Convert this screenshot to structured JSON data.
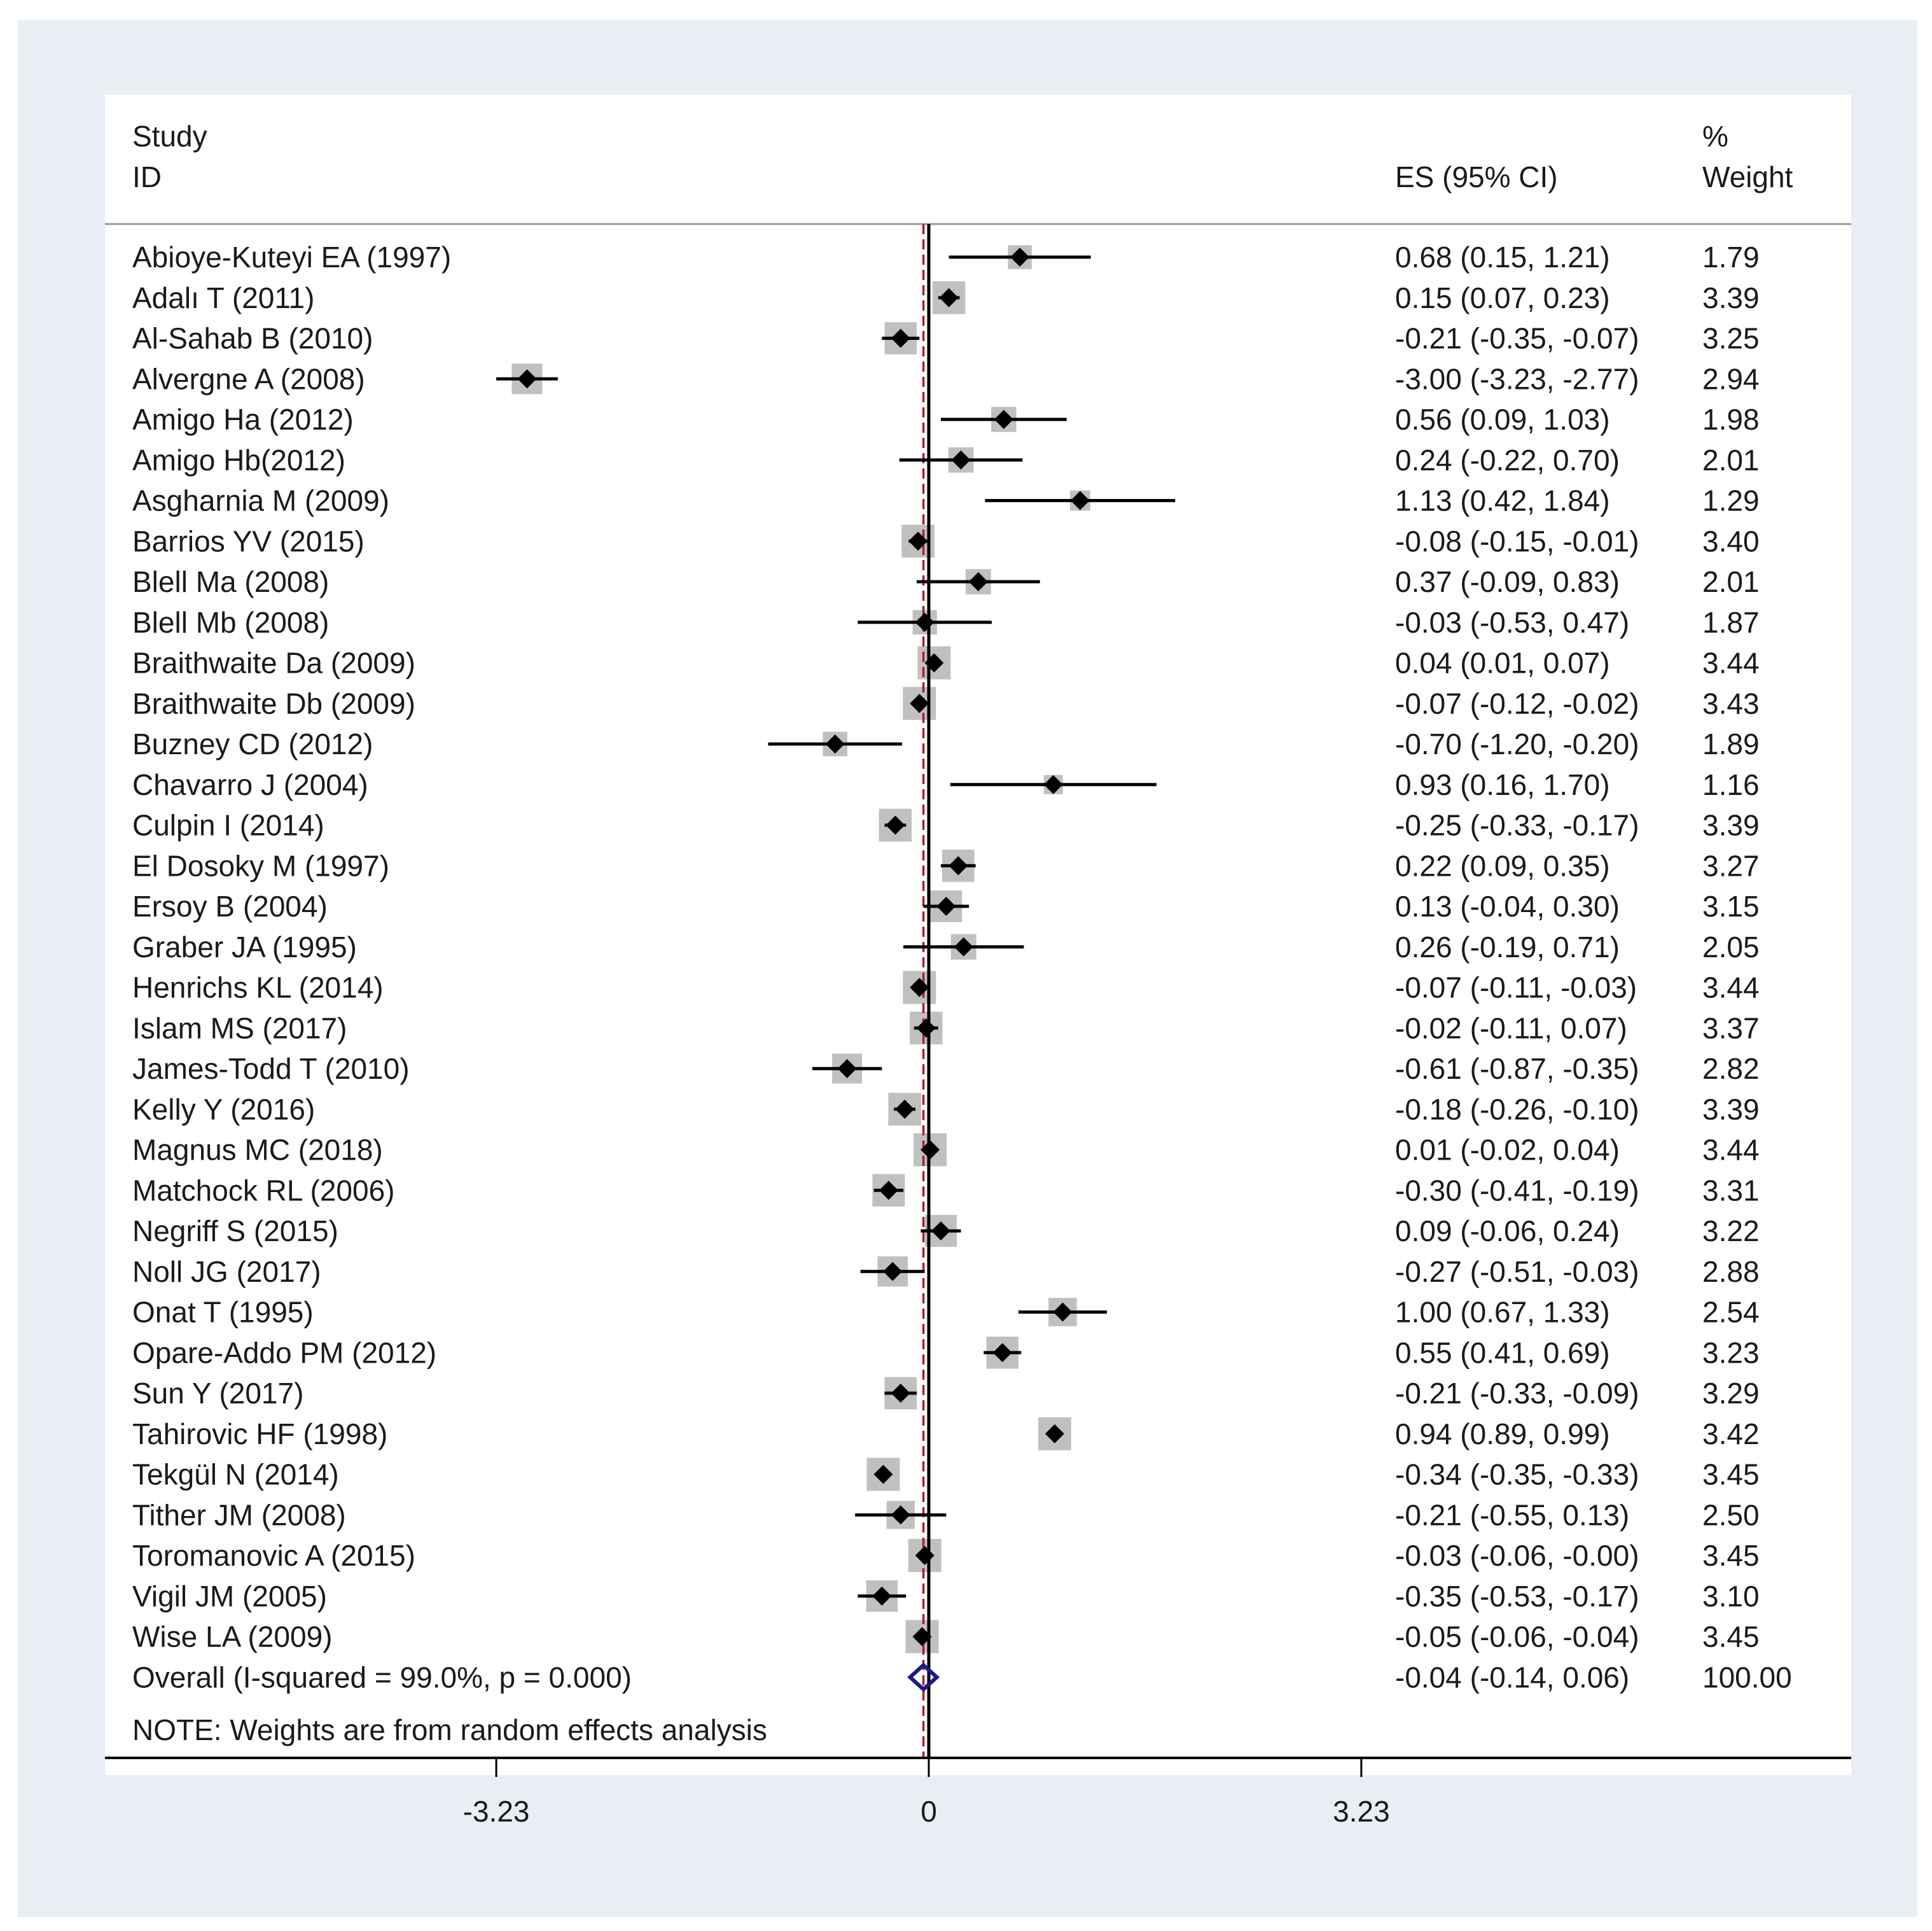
{
  "header": {
    "study_line1": "Study",
    "study_line2": "ID",
    "es_label": "ES (95% CI)",
    "weight_line1": "%",
    "weight_line2": "Weight"
  },
  "note": "NOTE: Weights are from random effects analysis",
  "colors": {
    "background": "#e8eef3",
    "panel": "#ffffff",
    "weight_box": "#c0c0c0",
    "marker": "#000000",
    "null_line": "#000000",
    "overall_line": "#b01c2e",
    "overall_diamond": "#1b1a8a"
  },
  "chart_data": {
    "type": "forest",
    "x_ticks": [
      {
        "value": -3.23,
        "label": "-3.23"
      },
      {
        "value": 0,
        "label": "0"
      },
      {
        "value": 3.23,
        "label": "3.23"
      }
    ],
    "null_value": 0,
    "overall_line_value": -0.04,
    "studies": [
      {
        "id": "Abioye-Kuteyi EA (1997)",
        "es": 0.68,
        "lo": 0.15,
        "hi": 1.21,
        "es_text": "0.68 (0.15, 1.21)",
        "weight": 1.79,
        "weight_text": "1.79"
      },
      {
        "id": "Adalı T (2011)",
        "es": 0.15,
        "lo": 0.07,
        "hi": 0.23,
        "es_text": "0.15 (0.07, 0.23)",
        "weight": 3.39,
        "weight_text": "3.39"
      },
      {
        "id": "Al-Sahab B (2010)",
        "es": -0.21,
        "lo": -0.35,
        "hi": -0.07,
        "es_text": "-0.21 (-0.35, -0.07)",
        "weight": 3.25,
        "weight_text": "3.25"
      },
      {
        "id": "Alvergne A (2008)",
        "es": -3.0,
        "lo": -3.23,
        "hi": -2.77,
        "es_text": "-3.00 (-3.23, -2.77)",
        "weight": 2.94,
        "weight_text": "2.94"
      },
      {
        "id": "Amigo Ha (2012)",
        "es": 0.56,
        "lo": 0.09,
        "hi": 1.03,
        "es_text": "0.56 (0.09, 1.03)",
        "weight": 1.98,
        "weight_text": "1.98"
      },
      {
        "id": "Amigo Hb(2012)",
        "es": 0.24,
        "lo": -0.22,
        "hi": 0.7,
        "es_text": "0.24 (-0.22, 0.70)",
        "weight": 2.01,
        "weight_text": "2.01"
      },
      {
        "id": "Asgharnia M (2009)",
        "es": 1.13,
        "lo": 0.42,
        "hi": 1.84,
        "es_text": "1.13 (0.42, 1.84)",
        "weight": 1.29,
        "weight_text": "1.29"
      },
      {
        "id": "Barrios YV (2015)",
        "es": -0.08,
        "lo": -0.15,
        "hi": -0.01,
        "es_text": "-0.08 (-0.15, -0.01)",
        "weight": 3.4,
        "weight_text": "3.40"
      },
      {
        "id": "Blell Ma (2008)",
        "es": 0.37,
        "lo": -0.09,
        "hi": 0.83,
        "es_text": "0.37 (-0.09, 0.83)",
        "weight": 2.01,
        "weight_text": "2.01"
      },
      {
        "id": "Blell Mb (2008)",
        "es": -0.03,
        "lo": -0.53,
        "hi": 0.47,
        "es_text": "-0.03 (-0.53, 0.47)",
        "weight": 1.87,
        "weight_text": "1.87"
      },
      {
        "id": "Braithwaite Da (2009)",
        "es": 0.04,
        "lo": 0.01,
        "hi": 0.07,
        "es_text": "0.04 (0.01, 0.07)",
        "weight": 3.44,
        "weight_text": "3.44"
      },
      {
        "id": "Braithwaite Db (2009)",
        "es": -0.07,
        "lo": -0.12,
        "hi": -0.02,
        "es_text": "-0.07 (-0.12, -0.02)",
        "weight": 3.43,
        "weight_text": "3.43"
      },
      {
        "id": "Buzney CD (2012)",
        "es": -0.7,
        "lo": -1.2,
        "hi": -0.2,
        "es_text": "-0.70 (-1.20, -0.20)",
        "weight": 1.89,
        "weight_text": "1.89"
      },
      {
        "id": "Chavarro J (2004)",
        "es": 0.93,
        "lo": 0.16,
        "hi": 1.7,
        "es_text": "0.93 (0.16, 1.70)",
        "weight": 1.16,
        "weight_text": "1.16"
      },
      {
        "id": "Culpin I (2014)",
        "es": -0.25,
        "lo": -0.33,
        "hi": -0.17,
        "es_text": "-0.25 (-0.33, -0.17)",
        "weight": 3.39,
        "weight_text": "3.39"
      },
      {
        "id": "El Dosoky M (1997)",
        "es": 0.22,
        "lo": 0.09,
        "hi": 0.35,
        "es_text": "0.22 (0.09, 0.35)",
        "weight": 3.27,
        "weight_text": "3.27"
      },
      {
        "id": "Ersoy B (2004)",
        "es": 0.13,
        "lo": -0.04,
        "hi": 0.3,
        "es_text": "0.13 (-0.04, 0.30)",
        "weight": 3.15,
        "weight_text": "3.15"
      },
      {
        "id": "Graber JA (1995)",
        "es": 0.26,
        "lo": -0.19,
        "hi": 0.71,
        "es_text": "0.26 (-0.19, 0.71)",
        "weight": 2.05,
        "weight_text": "2.05"
      },
      {
        "id": "Henrichs KL (2014)",
        "es": -0.07,
        "lo": -0.11,
        "hi": -0.03,
        "es_text": "-0.07 (-0.11, -0.03)",
        "weight": 3.44,
        "weight_text": "3.44"
      },
      {
        "id": "Islam MS (2017)",
        "es": -0.02,
        "lo": -0.11,
        "hi": 0.07,
        "es_text": "-0.02 (-0.11, 0.07)",
        "weight": 3.37,
        "weight_text": "3.37"
      },
      {
        "id": "James-Todd T (2010)",
        "es": -0.61,
        "lo": -0.87,
        "hi": -0.35,
        "es_text": "-0.61 (-0.87, -0.35)",
        "weight": 2.82,
        "weight_text": "2.82"
      },
      {
        "id": "Kelly Y (2016)",
        "es": -0.18,
        "lo": -0.26,
        "hi": -0.1,
        "es_text": "-0.18 (-0.26, -0.10)",
        "weight": 3.39,
        "weight_text": "3.39"
      },
      {
        "id": "Magnus MC (2018)",
        "es": 0.01,
        "lo": -0.02,
        "hi": 0.04,
        "es_text": "0.01 (-0.02, 0.04)",
        "weight": 3.44,
        "weight_text": "3.44"
      },
      {
        "id": "Matchock RL (2006)",
        "es": -0.3,
        "lo": -0.41,
        "hi": -0.19,
        "es_text": "-0.30 (-0.41, -0.19)",
        "weight": 3.31,
        "weight_text": "3.31"
      },
      {
        "id": "Negriff S (2015)",
        "es": 0.09,
        "lo": -0.06,
        "hi": 0.24,
        "es_text": "0.09 (-0.06, 0.24)",
        "weight": 3.22,
        "weight_text": "3.22"
      },
      {
        "id": "Noll JG (2017)",
        "es": -0.27,
        "lo": -0.51,
        "hi": -0.03,
        "es_text": "-0.27 (-0.51, -0.03)",
        "weight": 2.88,
        "weight_text": "2.88"
      },
      {
        "id": "Onat T (1995)",
        "es": 1.0,
        "lo": 0.67,
        "hi": 1.33,
        "es_text": "1.00 (0.67, 1.33)",
        "weight": 2.54,
        "weight_text": "2.54"
      },
      {
        "id": "Opare-Addo PM (2012)",
        "es": 0.55,
        "lo": 0.41,
        "hi": 0.69,
        "es_text": "0.55 (0.41, 0.69)",
        "weight": 3.23,
        "weight_text": "3.23"
      },
      {
        "id": "Sun Y (2017)",
        "es": -0.21,
        "lo": -0.33,
        "hi": -0.09,
        "es_text": "-0.21 (-0.33, -0.09)",
        "weight": 3.29,
        "weight_text": "3.29"
      },
      {
        "id": "Tahirovic HF (1998)",
        "es": 0.94,
        "lo": 0.89,
        "hi": 0.99,
        "es_text": "0.94 (0.89, 0.99)",
        "weight": 3.42,
        "weight_text": "3.42"
      },
      {
        "id": "Tekgül N (2014)",
        "es": -0.34,
        "lo": -0.35,
        "hi": -0.33,
        "es_text": "-0.34 (-0.35, -0.33)",
        "weight": 3.45,
        "weight_text": "3.45"
      },
      {
        "id": "Tither JM (2008)",
        "es": -0.21,
        "lo": -0.55,
        "hi": 0.13,
        "es_text": "-0.21 (-0.55, 0.13)",
        "weight": 2.5,
        "weight_text": "2.50"
      },
      {
        "id": "Toromanovic A (2015)",
        "es": -0.03,
        "lo": -0.06,
        "hi": 0.0,
        "es_text": "-0.03 (-0.06, -0.00)",
        "weight": 3.45,
        "weight_text": "3.45"
      },
      {
        "id": "Vigil JM (2005)",
        "es": -0.35,
        "lo": -0.53,
        "hi": -0.17,
        "es_text": "-0.35 (-0.53, -0.17)",
        "weight": 3.1,
        "weight_text": "3.10"
      },
      {
        "id": "Wise LA (2009)",
        "es": -0.05,
        "lo": -0.06,
        "hi": -0.04,
        "es_text": "-0.05 (-0.06, -0.04)",
        "weight": 3.45,
        "weight_text": "3.45"
      }
    ],
    "overall": {
      "id": "Overall  (I-squared = 99.0%, p = 0.000)",
      "es": -0.04,
      "lo": -0.14,
      "hi": 0.06,
      "es_text": "-0.04 (-0.14, 0.06)",
      "weight_text": "100.00"
    }
  }
}
